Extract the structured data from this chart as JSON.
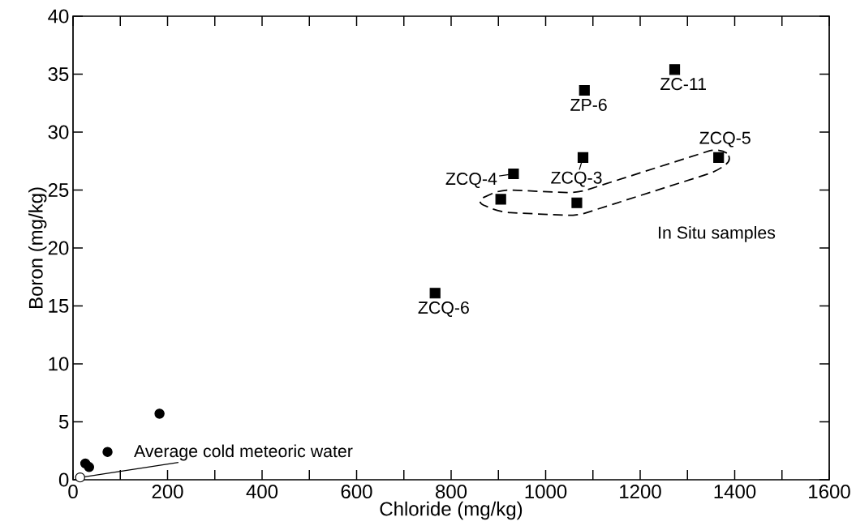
{
  "chart_data": {
    "type": "scatter",
    "xlabel": "Chloride (mg/kg)",
    "ylabel": "Boron (mg/kg)",
    "xlim": [
      0,
      1600
    ],
    "ylim": [
      0,
      40
    ],
    "xticks": [
      0,
      {
        "value": 100,
        "label": null
      },
      200,
      {
        "value": 300,
        "label": null
      },
      400,
      {
        "value": 500,
        "label": null
      },
      600,
      {
        "value": 700,
        "label": null
      },
      800,
      {
        "value": 900,
        "label": null
      },
      1000,
      {
        "value": 1100,
        "label": null
      },
      1200,
      {
        "value": 1300,
        "label": null
      },
      1400,
      {
        "value": 1500,
        "label": null
      },
      1600
    ],
    "yticks": [
      0,
      5,
      10,
      15,
      20,
      25,
      30,
      35,
      40
    ],
    "series": [
      {
        "name": "In Situ samples",
        "color": "#000000",
        "marker": "square",
        "x": [
          905,
          1066,
          1366
        ],
        "values": [
          24.2,
          23.9,
          27.8
        ]
      },
      {
        "color": "#000000",
        "marker": "square",
        "x": [
          1273,
          1082,
          1079,
          932,
          766
        ],
        "values": [
          35.4,
          33.6,
          27.8,
          26.4,
          16.1
        ]
      },
      {
        "color": "#000000",
        "marker": "circle",
        "x": [
          26,
          34,
          73,
          183
        ],
        "values": [
          1.4,
          1.1,
          2.4,
          5.7
        ]
      },
      {
        "color": "#ffffff",
        "marker": "circle",
        "x": [
          15
        ],
        "values": [
          0.2
        ]
      }
    ],
    "annotations": [
      {
        "text": "ZC-11",
        "x": 1273,
        "y": 35.4
      },
      {
        "text": "ZP-6",
        "x": 1082,
        "y": 33.6
      },
      {
        "text": "ZCQ-5",
        "x": 1366,
        "y": 27.8
      },
      {
        "text": "ZCQ-3",
        "x": 1079,
        "y": 27.8
      },
      {
        "text": "ZCQ-4",
        "x": 932,
        "y": 26.4
      },
      {
        "text": "ZCQ-6",
        "x": 766,
        "y": 16.1
      },
      {
        "text": "Average cold meteoric water",
        "x": 15,
        "y": 0.2
      }
    ]
  }
}
